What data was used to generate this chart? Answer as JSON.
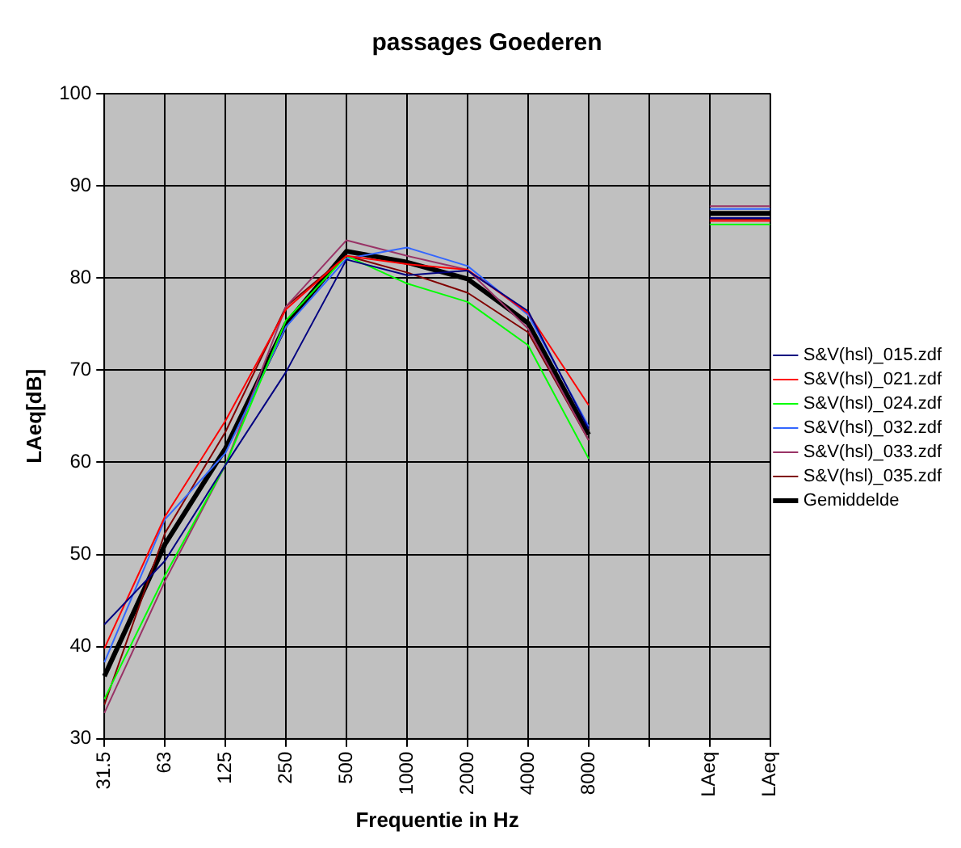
{
  "chart_data": {
    "type": "line",
    "title": "passages Goederen",
    "xlabel": "Frequentie in Hz",
    "ylabel": "LAeq[dB]",
    "categories": [
      "31.5",
      "63",
      "125",
      "250",
      "500",
      "1000",
      "2000",
      "4000",
      "8000",
      null,
      "LAeq",
      "LAeq"
    ],
    "ylim": [
      30,
      100
    ],
    "yticks": [
      30,
      40,
      50,
      60,
      70,
      80,
      90,
      100
    ],
    "grid": true,
    "legend": "right",
    "marker": "none",
    "line_style": "solid",
    "series": [
      {
        "name": "S&V(hsl)_015.zdf",
        "color": "#000080",
        "values": [
          42.4,
          49.3,
          59.7,
          69.8,
          82,
          80.3,
          80.8,
          76.4,
          63.6,
          null,
          86.5,
          86.5
        ]
      },
      {
        "name": "S&V(hsl)_021.zdf",
        "color": "#ff0000",
        "values": [
          39.8,
          54.1,
          64.5,
          76.6,
          82.4,
          81.5,
          80.9,
          76.2,
          66.2,
          null,
          86.2,
          86.2
        ]
      },
      {
        "name": "S&V(hsl)_024.zdf",
        "color": "#00ff00",
        "values": [
          34.3,
          47.7,
          59.7,
          75.4,
          82.4,
          79.4,
          77.4,
          72.7,
          60.4,
          null,
          85.8,
          85.8
        ]
      },
      {
        "name": "S&V(hsl)_032.zdf",
        "color": "#3366ff",
        "values": [
          38.3,
          53.8,
          61,
          74.7,
          82.1,
          83.3,
          81.3,
          76,
          63.9,
          null,
          87.5,
          87.5
        ]
      },
      {
        "name": "S&V(hsl)_033.zdf",
        "color": "#993366",
        "values": [
          32.8,
          47.1,
          59.7,
          76.9,
          84.1,
          82.4,
          80.9,
          74.5,
          62.4,
          null,
          87.8,
          87.8
        ]
      },
      {
        "name": "S&V(hsl)_035.zdf",
        "color": "#800000",
        "values": [
          33.7,
          52.3,
          63.3,
          76.9,
          82.4,
          80.6,
          78.4,
          74.1,
          62.4,
          null,
          86.4,
          86.4
        ]
      },
      {
        "name": "Gemiddelde",
        "color": "#000000",
        "values": [
          36.8,
          51.1,
          61.5,
          75,
          82.9,
          81.7,
          79.9,
          75.1,
          63,
          null,
          87,
          87
        ]
      }
    ]
  }
}
